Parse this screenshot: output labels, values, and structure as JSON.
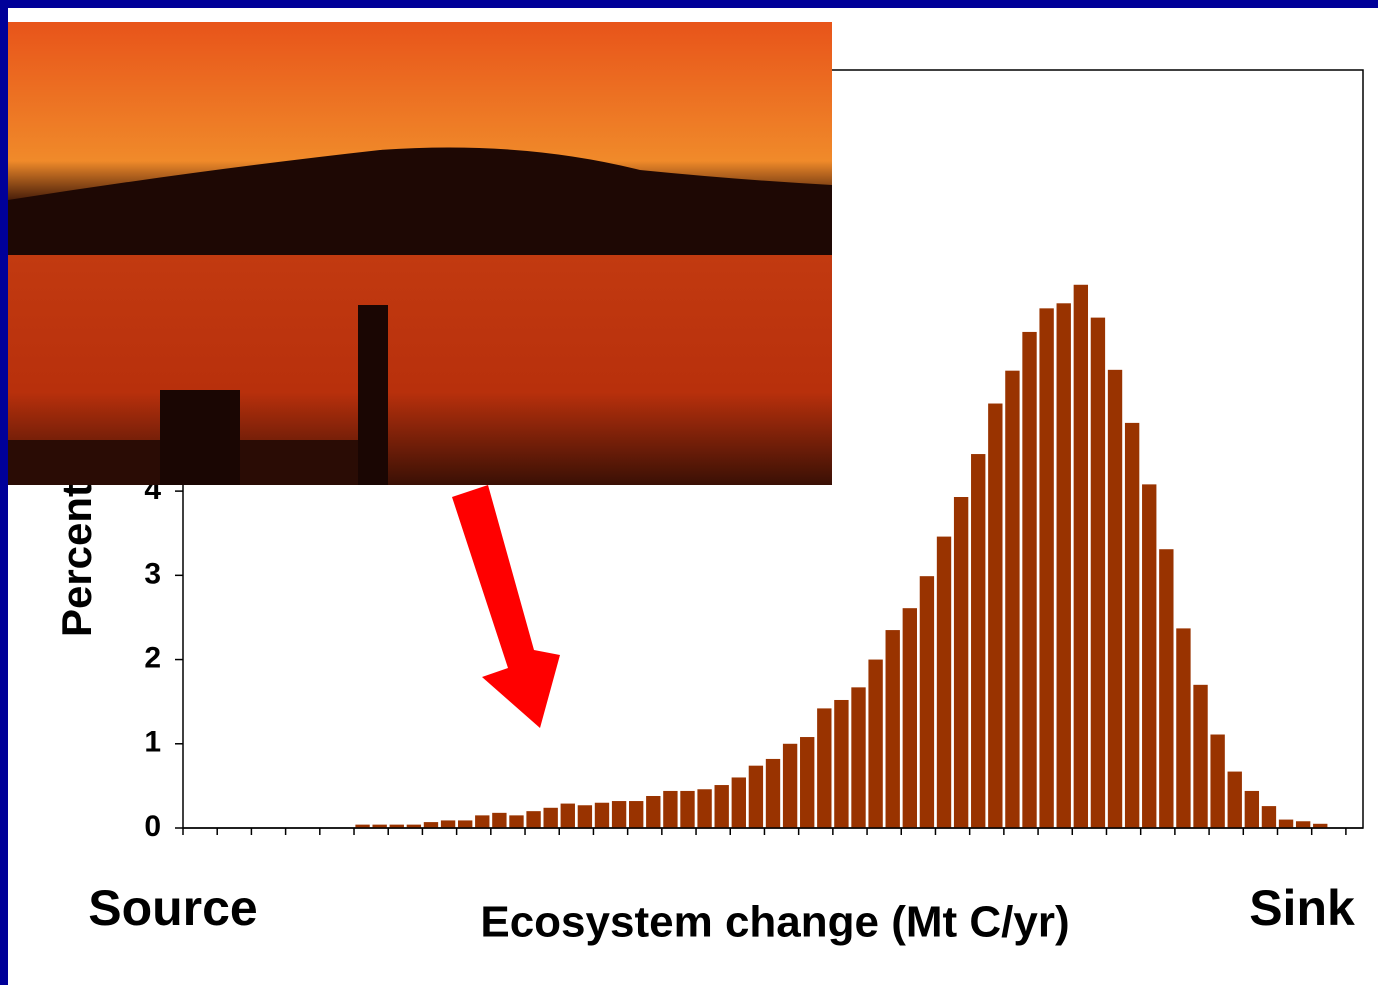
{
  "chart_data": {
    "type": "bar",
    "x_label": "Ecosystem change (Mt C/yr)",
    "y_label": "Percent",
    "annotations": [
      "Source",
      "Sink"
    ],
    "color": "#993300",
    "categories": [
      null,
      null,
      null,
      null,
      null,
      null,
      null,
      null,
      null,
      null,
      null,
      null,
      null,
      null,
      null,
      null,
      null,
      null,
      null,
      null,
      null,
      null,
      null,
      null,
      null,
      null,
      null,
      null,
      null,
      null,
      null,
      null,
      null,
      null,
      null,
      null,
      null,
      null,
      null,
      null,
      null,
      null,
      null,
      null,
      null,
      null,
      null,
      null,
      null,
      null,
      null,
      null,
      null,
      null,
      null,
      null,
      null,
      null,
      null,
      null,
      null,
      null,
      null,
      null,
      null,
      null,
      null,
      null,
      null
    ],
    "values": [
      0,
      0,
      0,
      0,
      0,
      0,
      0,
      0,
      0,
      0,
      0.04,
      0.04,
      0.04,
      0.04,
      0.07,
      0.09,
      0.09,
      0.15,
      0.18,
      0.15,
      0.2,
      0.24,
      0.29,
      0.27,
      0.3,
      0.32,
      0.32,
      0.38,
      0.44,
      0.44,
      0.46,
      0.51,
      0.6,
      0.74,
      0.82,
      1.0,
      1.08,
      1.42,
      1.52,
      1.67,
      2.0,
      2.35,
      2.61,
      2.99,
      3.46,
      3.93,
      4.44,
      5.04,
      5.43,
      5.89,
      6.17,
      6.23,
      6.45,
      6.06,
      5.44,
      4.81,
      4.08,
      3.31,
      2.37,
      1.7,
      1.11,
      0.67,
      0.44,
      0.26,
      0.1,
      0.08,
      0.05,
      0,
      0
    ],
    "ylim": [
      0,
      9
    ],
    "yticks": [
      0,
      1,
      2,
      3,
      4
    ]
  }
}
